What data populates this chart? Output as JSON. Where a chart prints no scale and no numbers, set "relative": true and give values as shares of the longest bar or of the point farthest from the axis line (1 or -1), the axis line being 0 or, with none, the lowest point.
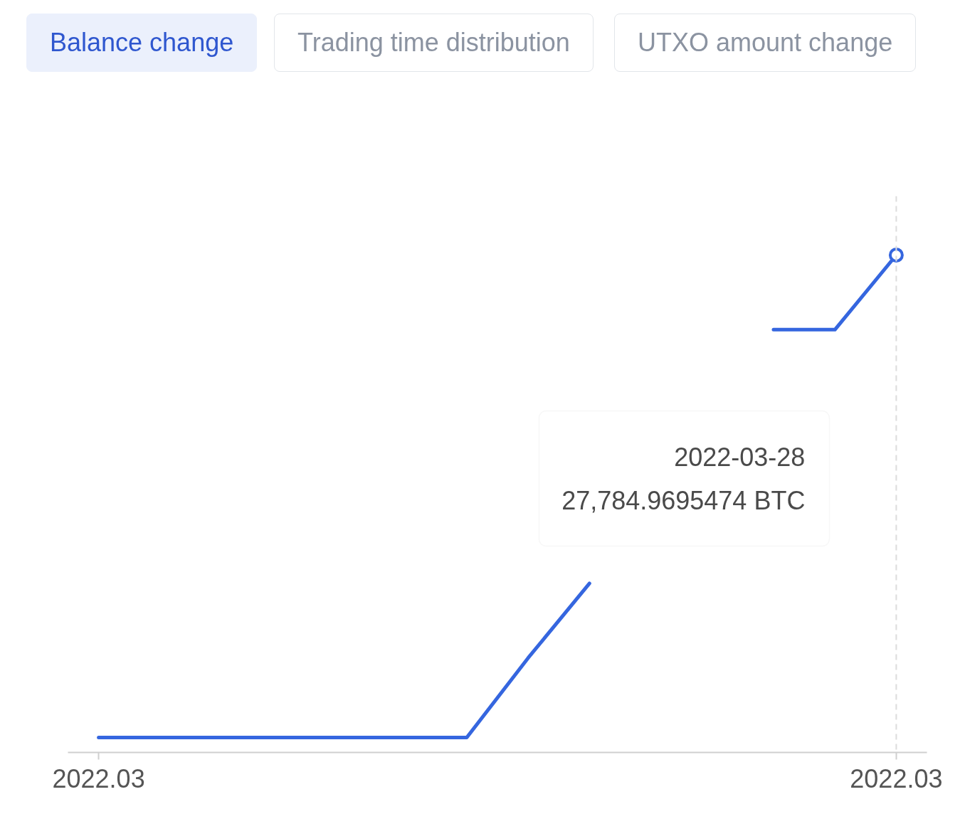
{
  "chart_data": {
    "type": "line",
    "title": "Balance change",
    "annotations": [
      "Trading time distribution",
      "UTXO amount change",
      "2022-03-28\n27,784.9695474 BTC"
    ],
    "categories": [
      "2022.03",
      null,
      null,
      null,
      null,
      null,
      null,
      null,
      null,
      null,
      null,
      null,
      null,
      "2022.03"
    ],
    "values": [
      0.03,
      0.03,
      0.03,
      0.03,
      0.03,
      0.03,
      0.03,
      0.19,
      0.34,
      null,
      null,
      0.85,
      0.85,
      1
    ],
    "color": "#3566df",
    "relative": true
  }
}
